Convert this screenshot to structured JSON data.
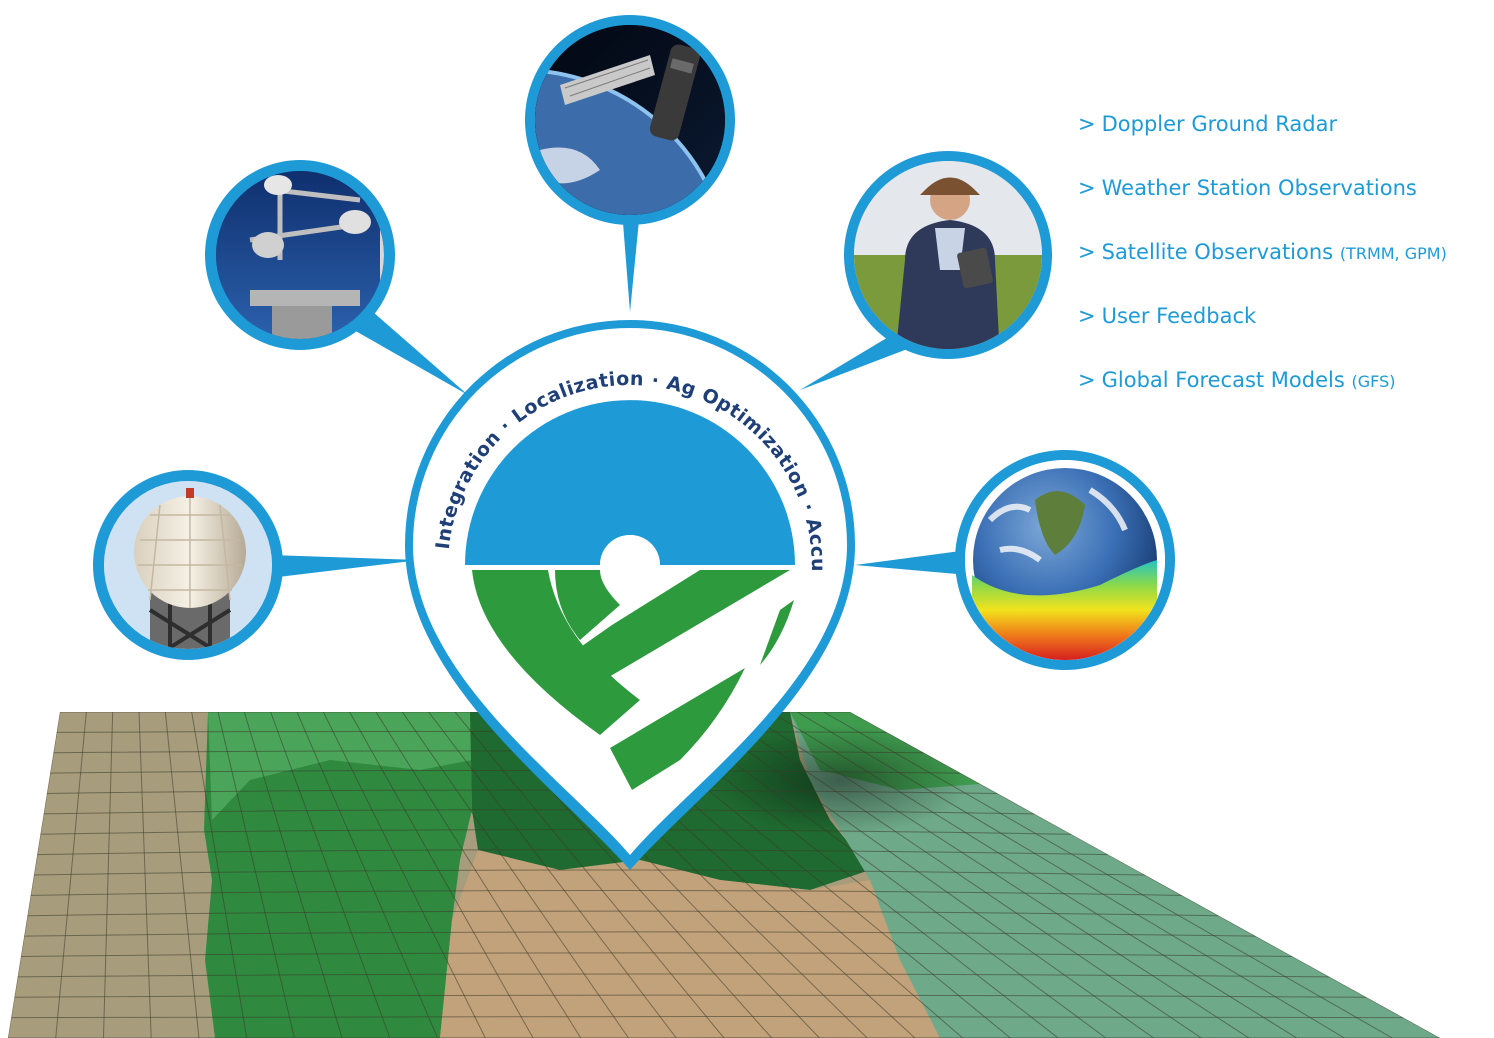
{
  "colors": {
    "brand_blue": "#1e9ad6",
    "brand_green": "#2e9a3e",
    "field_tan": "#c2a27a",
    "field_dark_green": "#1f6a30",
    "field_mid_green": "#3f9c4f",
    "field_sage": "#6ea989",
    "field_olive": "#a79d7d"
  },
  "logo": {
    "ring_words": [
      "Integration",
      "Localization",
      "Ag Optimization",
      "Accuracy"
    ],
    "ring_separator": "·"
  },
  "sources": [
    {
      "icon": "radar-dome-photo",
      "label": "Doppler Ground Radar",
      "abbr": ""
    },
    {
      "icon": "anemometer-photo",
      "label": "Weather Station Observations",
      "abbr": ""
    },
    {
      "icon": "satellite-photo",
      "label": "Satellite Observations",
      "abbr": "(TRMM, GPM)"
    },
    {
      "icon": "farmer-tablet-photo",
      "label": "User Feedback",
      "abbr": ""
    },
    {
      "icon": "global-model-earth-photo",
      "label": "Global Forecast Models",
      "abbr": "(GFS)"
    }
  ],
  "legend_prefix": ">"
}
